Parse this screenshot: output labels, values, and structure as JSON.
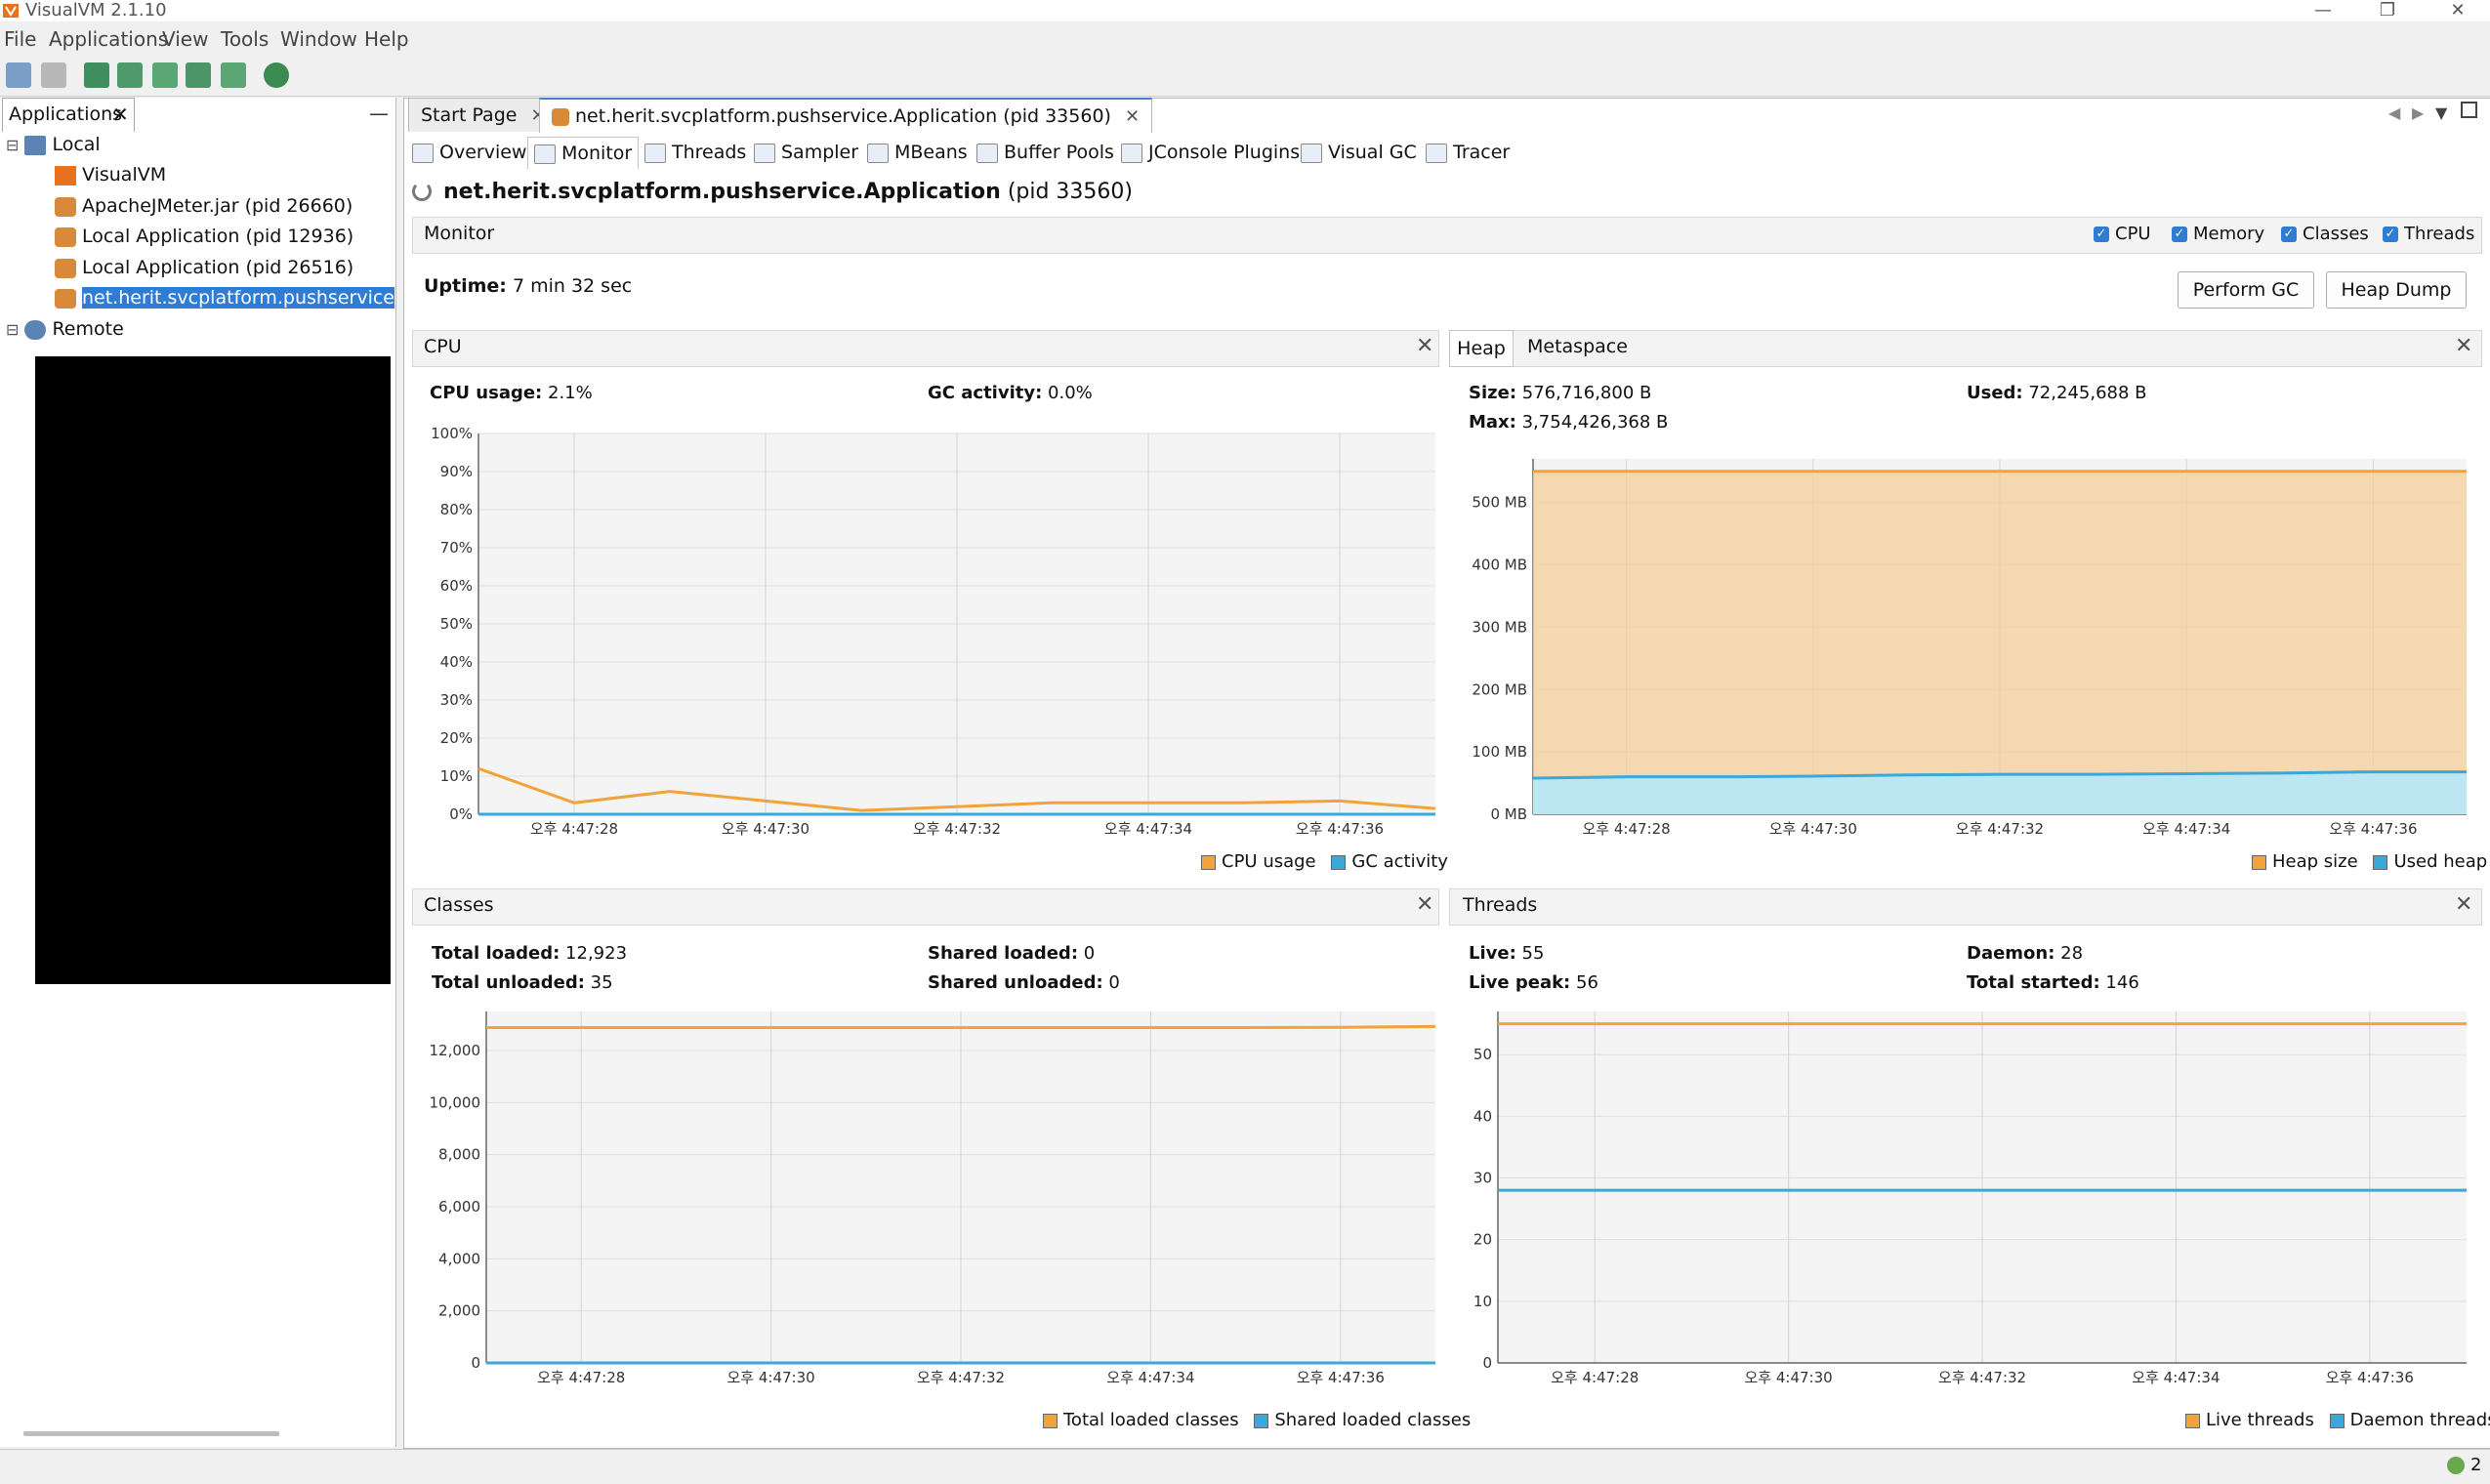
{
  "window": {
    "title": "VisualVM 2.1.10",
    "controls": [
      "—",
      "❐",
      "✕"
    ]
  },
  "menu": [
    "File",
    "Applications",
    "View",
    "Tools",
    "Window",
    "Help"
  ],
  "left_panel": {
    "tab_label": "Applications",
    "minimize": "—",
    "tree": {
      "local_label": "Local",
      "local_items": [
        {
          "label": "VisualVM"
        },
        {
          "label": "ApacheJMeter.jar (pid 26660)"
        },
        {
          "label": "Local Application (pid 12936)"
        },
        {
          "label": "Local Application (pid 26516)"
        },
        {
          "label": "net.herit.svcplatform.pushservice.Applic"
        }
      ],
      "remote_label": "Remote"
    }
  },
  "doc_tabs": [
    {
      "label": "Start Page"
    },
    {
      "label": "net.herit.svcplatform.pushservice.Application (pid 33560)"
    }
  ],
  "subtabs": [
    "Overview",
    "Monitor",
    "Threads",
    "Sampler",
    "MBeans",
    "Buffer Pools",
    "JConsole Plugins",
    "Visual GC",
    "Tracer"
  ],
  "app_heading": {
    "name": "net.herit.svcplatform.pushservice.Application",
    "pid": "(pid 33560)"
  },
  "monitor": {
    "label": "Monitor",
    "checkboxes": [
      "CPU",
      "Memory",
      "Classes",
      "Threads"
    ],
    "uptime_label": "Uptime:",
    "uptime_value": "7 min 32 sec",
    "perform_gc": "Perform GC",
    "heap_dump": "Heap Dump"
  },
  "panels": {
    "cpu": {
      "title": "CPU",
      "stats": [
        {
          "label": "CPU usage:",
          "value": "2.1%"
        },
        {
          "label": "GC activity:",
          "value": "0.0%"
        }
      ],
      "legend": [
        "CPU usage",
        "GC activity"
      ]
    },
    "heap": {
      "tabs": [
        "Heap",
        "Metaspace"
      ],
      "stats": [
        {
          "label": "Size:",
          "value": "576,716,800 B"
        },
        {
          "label": "Used:",
          "value": "72,245,688 B"
        },
        {
          "label": "Max:",
          "value": "3,754,426,368 B"
        }
      ],
      "legend": [
        "Heap size",
        "Used heap"
      ]
    },
    "classes": {
      "title": "Classes",
      "stats": [
        {
          "label": "Total loaded:",
          "value": "12,923"
        },
        {
          "label": "Shared loaded:",
          "value": "0"
        },
        {
          "label": "Total unloaded:",
          "value": "35"
        },
        {
          "label": "Shared unloaded:",
          "value": "0"
        }
      ],
      "legend": [
        "Total loaded classes",
        "Shared loaded classes"
      ]
    },
    "threads": {
      "title": "Threads",
      "stats": [
        {
          "label": "Live:",
          "value": "55"
        },
        {
          "label": "Daemon:",
          "value": "28"
        },
        {
          "label": "Live peak:",
          "value": "56"
        },
        {
          "label": "Total started:",
          "value": "146"
        }
      ],
      "legend": [
        "Live threads",
        "Daemon threads"
      ]
    }
  },
  "colors": {
    "orange": "#f2a33c",
    "blue": "#3aa8d8",
    "selection": "#2f7cd4",
    "heap_fill": "#f7cf99",
    "used_fill": "#bde6f3"
  },
  "chart_data": [
    {
      "type": "line",
      "title": "CPU",
      "x": [
        "오후 4:47:27",
        "오후 4:47:28",
        "오후 4:47:29",
        "오후 4:47:30",
        "오후 4:47:31",
        "오후 4:47:32",
        "오후 4:47:33",
        "오후 4:47:34",
        "오후 4:47:35",
        "오후 4:47:36",
        "오후 4:47:37"
      ],
      "x_ticks": [
        "오후 4:47:28",
        "오후 4:47:30",
        "오후 4:47:32",
        "오후 4:47:34",
        "오후 4:47:36"
      ],
      "series": [
        {
          "name": "CPU usage",
          "color": "#f2a33c",
          "values": [
            12,
            3,
            6,
            3.5,
            1,
            2,
            3,
            3,
            3,
            3.5,
            1.5
          ]
        },
        {
          "name": "GC activity",
          "color": "#3aa8d8",
          "values": [
            0,
            0,
            0,
            0,
            0,
            0,
            0,
            0,
            0,
            0,
            0
          ]
        }
      ],
      "ylim": [
        0,
        100
      ],
      "y_ticks": [
        "0%",
        "10%",
        "20%",
        "30%",
        "40%",
        "50%",
        "60%",
        "70%",
        "80%",
        "90%",
        "100%"
      ],
      "grid": true,
      "legend": "bottom-right"
    },
    {
      "type": "area",
      "title": "Heap",
      "x": [
        "오후 4:47:27",
        "오후 4:47:28",
        "오후 4:47:29",
        "오후 4:47:30",
        "오후 4:47:31",
        "오후 4:47:32",
        "오후 4:47:33",
        "오후 4:47:34",
        "오후 4:47:35",
        "오후 4:47:36",
        "오후 4:47:37"
      ],
      "x_ticks": [
        "오후 4:47:28",
        "오후 4:47:30",
        "오후 4:47:32",
        "오후 4:47:34",
        "오후 4:47:36"
      ],
      "series": [
        {
          "name": "Heap size",
          "color": "#f2a33c",
          "values": [
            550,
            550,
            550,
            550,
            550,
            550,
            550,
            550,
            550,
            550,
            550
          ]
        },
        {
          "name": "Used heap",
          "color": "#3aa8d8",
          "values": [
            58,
            60,
            60,
            61,
            63,
            64,
            64,
            65,
            66,
            68,
            68
          ]
        }
      ],
      "ylim": [
        0,
        570
      ],
      "y_ticks": [
        "0 MB",
        "100 MB",
        "200 MB",
        "300 MB",
        "400 MB",
        "500 MB"
      ],
      "grid": true,
      "legend": "bottom-right"
    },
    {
      "type": "line",
      "title": "Classes",
      "x": [
        "오후 4:47:27",
        "오후 4:47:28",
        "오후 4:47:29",
        "오후 4:47:30",
        "오후 4:47:31",
        "오후 4:47:32",
        "오후 4:47:33",
        "오후 4:47:34",
        "오후 4:47:35",
        "오후 4:47:36",
        "오후 4:47:37"
      ],
      "x_ticks": [
        "오후 4:47:28",
        "오후 4:47:30",
        "오후 4:47:32",
        "오후 4:47:34",
        "오후 4:47:36"
      ],
      "series": [
        {
          "name": "Total loaded classes",
          "color": "#f2a33c",
          "values": [
            12880,
            12880,
            12880,
            12880,
            12880,
            12880,
            12880,
            12880,
            12880,
            12890,
            12923
          ]
        },
        {
          "name": "Shared loaded classes",
          "color": "#3aa8d8",
          "values": [
            0,
            0,
            0,
            0,
            0,
            0,
            0,
            0,
            0,
            0,
            0
          ]
        }
      ],
      "ylim": [
        0,
        13500
      ],
      "y_ticks": [
        "0",
        "2,000",
        "4,000",
        "6,000",
        "8,000",
        "10,000",
        "12,000"
      ],
      "grid": true,
      "legend": "bottom-right"
    },
    {
      "type": "line",
      "title": "Threads",
      "x": [
        "오후 4:47:27",
        "오후 4:47:28",
        "오후 4:47:29",
        "오후 4:47:30",
        "오후 4:47:31",
        "오후 4:47:32",
        "오후 4:47:33",
        "오후 4:47:34",
        "오후 4:47:35",
        "오후 4:47:36",
        "오후 4:47:37"
      ],
      "x_ticks": [
        "오후 4:47:28",
        "오후 4:47:30",
        "오후 4:47:32",
        "오후 4:47:34",
        "오후 4:47:36"
      ],
      "series": [
        {
          "name": "Live threads",
          "color": "#f2a33c",
          "values": [
            55,
            55,
            55,
            55,
            55,
            55,
            55,
            55,
            55,
            55,
            55
          ]
        },
        {
          "name": "Daemon threads",
          "color": "#3aa8d8",
          "values": [
            28,
            28,
            28,
            28,
            28,
            28,
            28,
            28,
            28,
            28,
            28
          ]
        }
      ],
      "ylim": [
        0,
        57
      ],
      "y_ticks": [
        "0",
        "10",
        "20",
        "30",
        "40",
        "50"
      ],
      "grid": true,
      "legend": "bottom-right"
    }
  ],
  "status": {
    "count": "2"
  }
}
